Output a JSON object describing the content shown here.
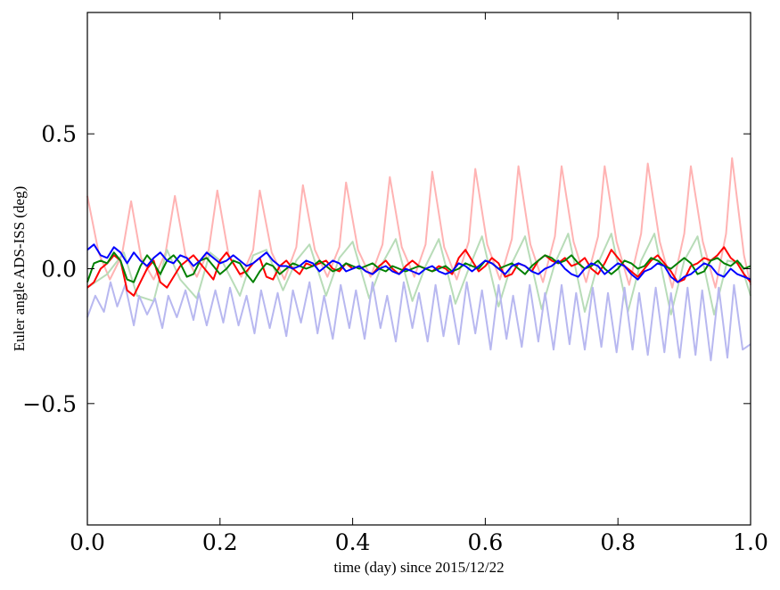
{
  "chart_data": {
    "type": "line",
    "title": "",
    "xlabel": "time (day) since 2015/12/22",
    "ylabel": "Euler angle ADS-ISS (deg)",
    "xlim": [
      0.0,
      1.0
    ],
    "ylim": [
      -0.95,
      0.95
    ],
    "grid": false,
    "legend": "none",
    "x_ticks": [
      0.0,
      0.2,
      0.4,
      0.6,
      0.8,
      1.0
    ],
    "x_tick_labels": [
      "0.0",
      "0.2",
      "0.4",
      "0.6",
      "0.8",
      "1.0"
    ],
    "y_ticks": [
      0.5,
      0.0,
      -0.5
    ],
    "y_tick_labels": [
      "0.5",
      "0.0",
      "−0.5"
    ],
    "series": [
      {
        "color": "#ffb3b3",
        "x": [
          0.0,
          0.017,
          0.034,
          0.052,
          0.066,
          0.081,
          0.1,
          0.118,
          0.132,
          0.148,
          0.165,
          0.183,
          0.196,
          0.213,
          0.232,
          0.25,
          0.26,
          0.278,
          0.297,
          0.315,
          0.325,
          0.343,
          0.362,
          0.38,
          0.39,
          0.408,
          0.427,
          0.445,
          0.456,
          0.474,
          0.493,
          0.51,
          0.52,
          0.538,
          0.557,
          0.575,
          0.585,
          0.603,
          0.622,
          0.64,
          0.65,
          0.668,
          0.687,
          0.705,
          0.715,
          0.733,
          0.752,
          0.77,
          0.78,
          0.798,
          0.817,
          0.835,
          0.845,
          0.863,
          0.882,
          0.9,
          0.91,
          0.928,
          0.947,
          0.963,
          0.972,
          0.99,
          1.0
        ],
        "y": [
          0.27,
          0.06,
          -0.04,
          0.05,
          0.25,
          0.04,
          -0.04,
          0.06,
          0.27,
          0.05,
          -0.03,
          0.07,
          0.29,
          0.05,
          -0.03,
          0.07,
          0.29,
          0.06,
          -0.04,
          0.08,
          0.31,
          0.07,
          -0.03,
          0.08,
          0.32,
          0.07,
          -0.03,
          0.09,
          0.34,
          0.08,
          -0.03,
          0.09,
          0.36,
          0.08,
          -0.04,
          0.1,
          0.37,
          0.09,
          -0.04,
          0.11,
          0.38,
          0.09,
          -0.05,
          0.12,
          0.38,
          0.1,
          -0.05,
          0.12,
          0.38,
          0.1,
          -0.06,
          0.13,
          0.39,
          0.1,
          -0.07,
          0.13,
          0.38,
          0.1,
          -0.07,
          0.13,
          0.41,
          0.05,
          -0.06
        ]
      },
      {
        "color": "#b8dcb8",
        "x": [
          0.0,
          0.03,
          0.055,
          0.075,
          0.1,
          0.12,
          0.14,
          0.165,
          0.185,
          0.205,
          0.23,
          0.25,
          0.27,
          0.295,
          0.315,
          0.335,
          0.36,
          0.38,
          0.4,
          0.425,
          0.445,
          0.465,
          0.49,
          0.51,
          0.53,
          0.555,
          0.575,
          0.595,
          0.62,
          0.64,
          0.66,
          0.685,
          0.705,
          0.725,
          0.75,
          0.77,
          0.79,
          0.815,
          0.835,
          0.855,
          0.88,
          0.9,
          0.92,
          0.945,
          0.965,
          0.985,
          1.0
        ],
        "y": [
          -0.07,
          -0.02,
          0.06,
          -0.1,
          -0.12,
          0.07,
          -0.04,
          -0.11,
          0.06,
          0.02,
          -0.1,
          0.05,
          0.07,
          -0.08,
          0.03,
          0.09,
          -0.1,
          0.04,
          0.1,
          -0.11,
          0.02,
          0.11,
          -0.12,
          0.01,
          0.11,
          -0.13,
          0.0,
          0.12,
          -0.14,
          0.02,
          0.12,
          -0.15,
          0.02,
          0.13,
          -0.16,
          0.02,
          0.13,
          -0.16,
          0.03,
          0.13,
          -0.17,
          0.03,
          0.12,
          -0.17,
          0.03,
          0.02,
          -0.1
        ]
      },
      {
        "color": "#b8b8f0",
        "x": [
          0.0,
          0.012,
          0.025,
          0.035,
          0.045,
          0.057,
          0.07,
          0.078,
          0.09,
          0.102,
          0.113,
          0.122,
          0.135,
          0.148,
          0.16,
          0.168,
          0.18,
          0.193,
          0.205,
          0.215,
          0.228,
          0.24,
          0.252,
          0.262,
          0.275,
          0.287,
          0.3,
          0.31,
          0.322,
          0.335,
          0.347,
          0.357,
          0.37,
          0.382,
          0.395,
          0.405,
          0.418,
          0.43,
          0.442,
          0.452,
          0.465,
          0.477,
          0.49,
          0.5,
          0.513,
          0.525,
          0.537,
          0.547,
          0.56,
          0.572,
          0.585,
          0.595,
          0.608,
          0.62,
          0.632,
          0.642,
          0.655,
          0.667,
          0.68,
          0.69,
          0.703,
          0.715,
          0.727,
          0.737,
          0.75,
          0.762,
          0.775,
          0.785,
          0.798,
          0.81,
          0.822,
          0.832,
          0.845,
          0.857,
          0.87,
          0.88,
          0.893,
          0.905,
          0.917,
          0.927,
          0.94,
          0.952,
          0.965,
          0.975,
          0.988,
          1.0
        ],
        "y": [
          -0.18,
          -0.1,
          -0.16,
          -0.05,
          -0.14,
          -0.06,
          -0.21,
          -0.1,
          -0.17,
          -0.11,
          -0.22,
          -0.1,
          -0.18,
          -0.08,
          -0.19,
          -0.09,
          -0.21,
          -0.08,
          -0.2,
          -0.07,
          -0.21,
          -0.1,
          -0.24,
          -0.08,
          -0.22,
          -0.09,
          -0.25,
          -0.08,
          -0.2,
          -0.05,
          -0.24,
          -0.1,
          -0.26,
          -0.06,
          -0.22,
          -0.08,
          -0.26,
          -0.05,
          -0.22,
          -0.1,
          -0.27,
          -0.05,
          -0.22,
          -0.09,
          -0.27,
          -0.06,
          -0.25,
          -0.1,
          -0.28,
          -0.05,
          -0.24,
          -0.08,
          -0.3,
          -0.06,
          -0.26,
          -0.1,
          -0.29,
          -0.06,
          -0.27,
          -0.09,
          -0.3,
          -0.06,
          -0.28,
          -0.09,
          -0.3,
          -0.07,
          -0.29,
          -0.09,
          -0.31,
          -0.07,
          -0.3,
          -0.09,
          -0.32,
          -0.07,
          -0.31,
          -0.09,
          -0.33,
          -0.07,
          -0.32,
          -0.08,
          -0.34,
          -0.07,
          -0.33,
          -0.06,
          -0.3,
          -0.28
        ]
      },
      {
        "color": "#ff0000",
        "x": [
          0.0,
          0.01,
          0.02,
          0.03,
          0.04,
          0.05,
          0.06,
          0.07,
          0.08,
          0.09,
          0.1,
          0.11,
          0.12,
          0.13,
          0.14,
          0.15,
          0.16,
          0.17,
          0.18,
          0.19,
          0.2,
          0.21,
          0.22,
          0.23,
          0.24,
          0.25,
          0.26,
          0.27,
          0.28,
          0.29,
          0.3,
          0.31,
          0.32,
          0.33,
          0.34,
          0.35,
          0.36,
          0.37,
          0.38,
          0.39,
          0.4,
          0.41,
          0.42,
          0.43,
          0.44,
          0.45,
          0.46,
          0.47,
          0.48,
          0.49,
          0.5,
          0.51,
          0.52,
          0.53,
          0.54,
          0.55,
          0.56,
          0.57,
          0.58,
          0.59,
          0.6,
          0.61,
          0.62,
          0.63,
          0.64,
          0.65,
          0.66,
          0.67,
          0.68,
          0.69,
          0.7,
          0.71,
          0.72,
          0.73,
          0.74,
          0.75,
          0.76,
          0.77,
          0.78,
          0.79,
          0.8,
          0.81,
          0.82,
          0.83,
          0.84,
          0.85,
          0.86,
          0.87,
          0.88,
          0.89,
          0.9,
          0.91,
          0.92,
          0.93,
          0.94,
          0.95,
          0.96,
          0.97,
          0.98,
          0.99,
          1.0
        ],
        "y": [
          -0.07,
          -0.05,
          0.0,
          0.02,
          0.05,
          0.03,
          -0.08,
          -0.1,
          -0.05,
          0.0,
          0.03,
          -0.05,
          -0.07,
          -0.03,
          0.01,
          0.03,
          0.05,
          0.02,
          -0.01,
          -0.04,
          0.03,
          0.06,
          0.02,
          -0.02,
          -0.01,
          0.02,
          0.04,
          -0.03,
          -0.04,
          0.01,
          0.03,
          0.0,
          -0.02,
          0.02,
          0.01,
          0.02,
          0.03,
          0.0,
          -0.01,
          0.02,
          0.0,
          0.01,
          -0.01,
          -0.02,
          0.01,
          0.03,
          0.0,
          -0.02,
          0.01,
          0.03,
          0.01,
          0.0,
          -0.01,
          0.01,
          0.0,
          -0.02,
          0.04,
          0.07,
          0.03,
          -0.01,
          0.01,
          0.04,
          0.02,
          -0.03,
          -0.02,
          0.02,
          0.01,
          -0.01,
          0.03,
          0.05,
          0.03,
          0.02,
          0.04,
          0.01,
          0.02,
          0.04,
          0.0,
          -0.02,
          0.02,
          0.07,
          0.04,
          0.01,
          -0.01,
          -0.03,
          0.0,
          0.03,
          0.05,
          0.02,
          -0.01,
          -0.05,
          -0.04,
          0.01,
          0.02,
          0.04,
          0.03,
          0.05,
          0.08,
          0.04,
          0.02,
          -0.02,
          -0.05
        ]
      },
      {
        "color": "#008000",
        "x": [
          0.0,
          0.01,
          0.02,
          0.03,
          0.04,
          0.05,
          0.06,
          0.07,
          0.08,
          0.09,
          0.1,
          0.11,
          0.12,
          0.13,
          0.14,
          0.15,
          0.16,
          0.17,
          0.18,
          0.19,
          0.2,
          0.21,
          0.22,
          0.23,
          0.24,
          0.25,
          0.26,
          0.27,
          0.28,
          0.29,
          0.3,
          0.31,
          0.32,
          0.33,
          0.34,
          0.35,
          0.36,
          0.37,
          0.38,
          0.39,
          0.4,
          0.41,
          0.42,
          0.43,
          0.44,
          0.45,
          0.46,
          0.47,
          0.48,
          0.49,
          0.5,
          0.51,
          0.52,
          0.53,
          0.54,
          0.55,
          0.56,
          0.57,
          0.58,
          0.59,
          0.6,
          0.61,
          0.62,
          0.63,
          0.64,
          0.65,
          0.66,
          0.67,
          0.68,
          0.69,
          0.7,
          0.71,
          0.72,
          0.73,
          0.74,
          0.75,
          0.76,
          0.77,
          0.78,
          0.79,
          0.8,
          0.81,
          0.82,
          0.83,
          0.84,
          0.85,
          0.86,
          0.87,
          0.88,
          0.89,
          0.9,
          0.91,
          0.92,
          0.93,
          0.94,
          0.95,
          0.96,
          0.97,
          0.98,
          0.99,
          1.0
        ],
        "y": [
          -0.05,
          0.02,
          0.03,
          0.02,
          0.06,
          0.03,
          -0.04,
          -0.05,
          0.01,
          0.05,
          0.02,
          -0.02,
          0.03,
          0.05,
          0.02,
          -0.03,
          -0.02,
          0.03,
          0.04,
          0.01,
          -0.02,
          0.0,
          0.03,
          0.02,
          -0.02,
          -0.05,
          -0.01,
          0.02,
          0.01,
          -0.02,
          0.0,
          0.02,
          0.01,
          0.0,
          0.01,
          0.03,
          0.01,
          -0.01,
          0.0,
          0.02,
          0.01,
          0.0,
          0.01,
          0.02,
          0.0,
          -0.01,
          0.01,
          0.0,
          -0.01,
          0.0,
          0.01,
          0.0,
          -0.01,
          0.0,
          0.01,
          -0.01,
          0.0,
          0.02,
          0.01,
          0.0,
          0.03,
          0.02,
          0.0,
          0.01,
          0.02,
          0.0,
          -0.02,
          0.01,
          0.03,
          0.05,
          0.04,
          0.02,
          0.03,
          0.05,
          0.02,
          0.0,
          0.01,
          0.03,
          0.0,
          -0.02,
          0.0,
          0.03,
          0.02,
          0.0,
          0.01,
          0.04,
          0.03,
          0.01,
          0.0,
          0.02,
          0.04,
          0.02,
          -0.02,
          -0.01,
          0.03,
          0.04,
          0.02,
          0.01,
          0.03,
          0.0,
          0.01
        ]
      },
      {
        "color": "#0000ff",
        "x": [
          0.0,
          0.01,
          0.02,
          0.03,
          0.04,
          0.05,
          0.06,
          0.07,
          0.08,
          0.09,
          0.1,
          0.11,
          0.12,
          0.13,
          0.14,
          0.15,
          0.16,
          0.17,
          0.18,
          0.19,
          0.2,
          0.21,
          0.22,
          0.23,
          0.24,
          0.25,
          0.26,
          0.27,
          0.28,
          0.29,
          0.3,
          0.31,
          0.32,
          0.33,
          0.34,
          0.35,
          0.36,
          0.37,
          0.38,
          0.39,
          0.4,
          0.41,
          0.42,
          0.43,
          0.44,
          0.45,
          0.46,
          0.47,
          0.48,
          0.49,
          0.5,
          0.51,
          0.52,
          0.53,
          0.54,
          0.55,
          0.56,
          0.57,
          0.58,
          0.59,
          0.6,
          0.61,
          0.62,
          0.63,
          0.64,
          0.65,
          0.66,
          0.67,
          0.68,
          0.69,
          0.7,
          0.71,
          0.72,
          0.73,
          0.74,
          0.75,
          0.76,
          0.77,
          0.78,
          0.79,
          0.8,
          0.81,
          0.82,
          0.83,
          0.84,
          0.85,
          0.86,
          0.87,
          0.88,
          0.89,
          0.9,
          0.91,
          0.92,
          0.93,
          0.94,
          0.95,
          0.96,
          0.97,
          0.98,
          0.99,
          1.0
        ],
        "y": [
          0.07,
          0.09,
          0.05,
          0.04,
          0.08,
          0.06,
          0.02,
          0.06,
          0.03,
          0.01,
          0.04,
          0.06,
          0.03,
          0.02,
          0.05,
          0.04,
          0.01,
          0.03,
          0.06,
          0.04,
          0.02,
          0.03,
          0.05,
          0.03,
          0.01,
          0.02,
          0.04,
          0.06,
          0.03,
          0.01,
          0.01,
          0.0,
          0.01,
          0.03,
          0.02,
          -0.01,
          0.01,
          0.03,
          0.02,
          -0.01,
          0.0,
          0.01,
          -0.01,
          -0.02,
          0.0,
          0.01,
          -0.01,
          -0.02,
          0.0,
          -0.01,
          -0.02,
          0.0,
          0.01,
          -0.01,
          -0.02,
          -0.01,
          0.02,
          0.01,
          -0.01,
          0.01,
          0.03,
          0.02,
          0.0,
          -0.02,
          0.01,
          0.02,
          0.01,
          -0.01,
          -0.02,
          0.0,
          0.01,
          0.03,
          0.0,
          -0.02,
          -0.03,
          0.0,
          0.02,
          0.01,
          -0.02,
          0.0,
          0.02,
          0.01,
          -0.02,
          -0.04,
          -0.01,
          0.0,
          0.02,
          0.01,
          -0.03,
          -0.05,
          -0.03,
          -0.02,
          0.0,
          0.02,
          0.01,
          -0.02,
          -0.03,
          0.0,
          -0.02,
          -0.03,
          -0.04
        ]
      }
    ]
  }
}
